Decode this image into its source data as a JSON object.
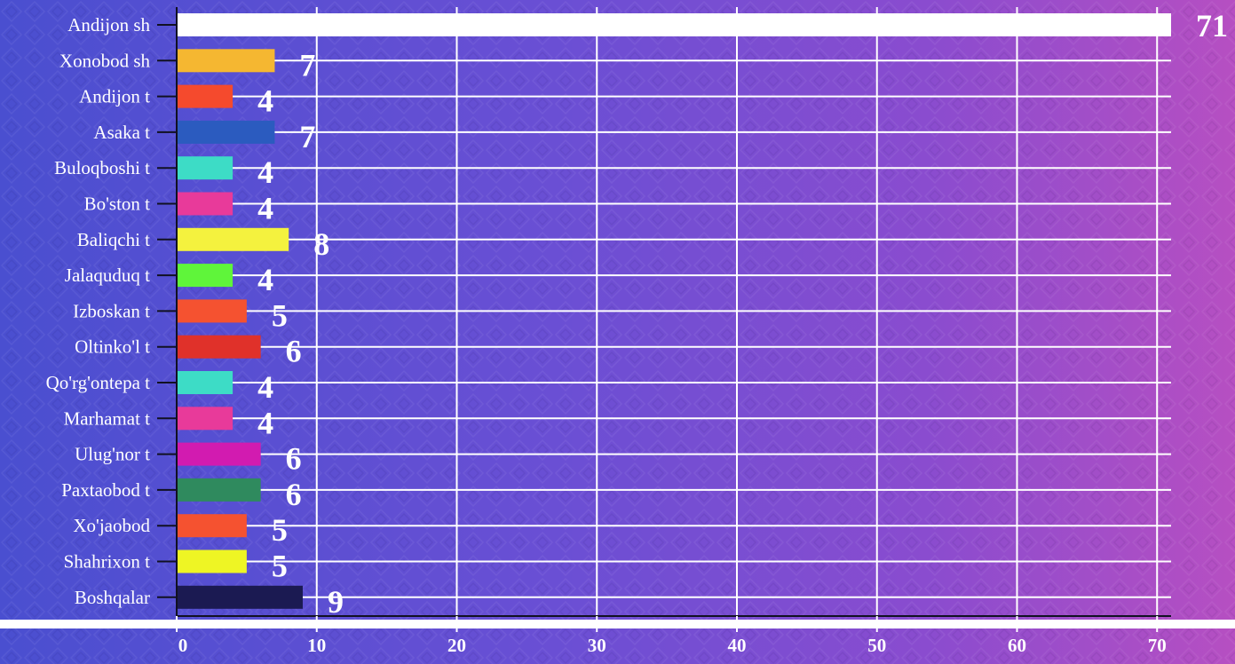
{
  "chart_data": {
    "type": "bar",
    "orientation": "horizontal",
    "categories": [
      "Andijon sh",
      "Xonobod sh",
      "Andijon t",
      "Asaka t",
      "Buloqboshi t",
      "Bo'ston t",
      "Baliqchi t",
      "Jalaquduq t",
      "Izboskan t",
      "Oltinko'l t",
      "Qo'rg'ontepa t",
      "Marhamat t",
      "Ulug'nor t",
      "Paxtaobod t",
      "Xo'jaobod",
      "Shahrixon t",
      "Boshqalar"
    ],
    "values": [
      71,
      7,
      4,
      7,
      4,
      4,
      8,
      4,
      5,
      6,
      4,
      4,
      6,
      6,
      5,
      5,
      9
    ],
    "value_labels": [
      "71",
      "7",
      "4",
      "7",
      "4",
      "4",
      "8",
      "4",
      "5",
      "6",
      "4",
      "4",
      "6",
      "6",
      "5",
      "5",
      "9"
    ],
    "colors": [
      "#ffffff",
      "#f5b731",
      "#f54a2d",
      "#2b5bbf",
      "#3ddcc6",
      "#e83a9a",
      "#f4f23e",
      "#5ff53a",
      "#f55230",
      "#e0312a",
      "#3ddcc6",
      "#e83a9a",
      "#d21bb0",
      "#2f8a5e",
      "#f55230",
      "#eef524",
      "#1b1a52"
    ],
    "xlim": [
      0,
      71
    ],
    "xticks": [
      0,
      10,
      20,
      30,
      40,
      50,
      60,
      70
    ],
    "xtick_labels": [
      "0",
      "10",
      "20",
      "30",
      "40",
      "50",
      "60",
      "70"
    ],
    "grid": true,
    "title": "",
    "xlabel": "",
    "ylabel": ""
  }
}
